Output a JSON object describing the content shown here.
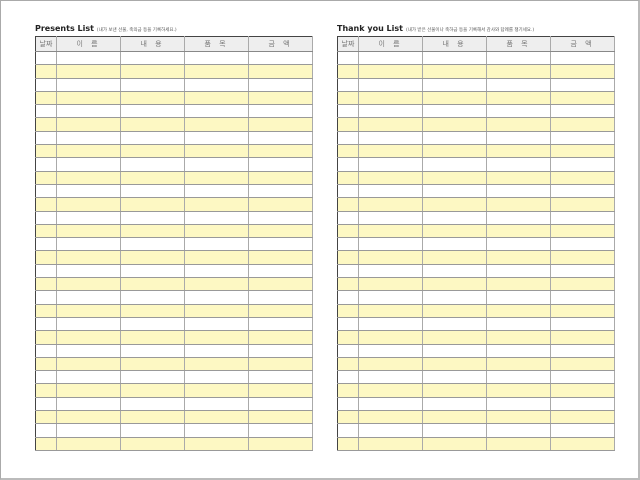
{
  "colors": {
    "stripe": "#fdf8c3",
    "header": "#eeeeee"
  },
  "row_count": 30,
  "presents": {
    "title": "Presents List",
    "subtitle": "(내가 보낸 선물, 축의금 등을 기록하세요.)",
    "columns": [
      "날짜",
      "이 름",
      "내 용",
      "품 목",
      "금 액"
    ]
  },
  "thanks": {
    "title": "Thank you List",
    "subtitle": "(내가 받은 선물이나 축하금 등을 기록해서 감사와 답례를 챙기세요.)",
    "columns": [
      "날짜",
      "이 름",
      "내 용",
      "품 목",
      "금 액"
    ]
  }
}
